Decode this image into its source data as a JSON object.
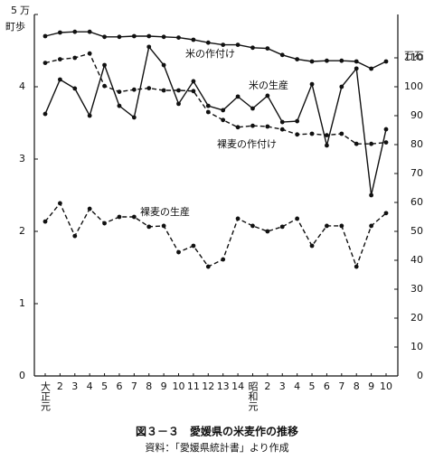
{
  "chart_data": {
    "type": "line",
    "title": "図３－３　愛媛県の米麦作の推移",
    "subtitle": "資料：「愛媛県統計書」より作成",
    "y_label_lines": [
      "万",
      "町歩"
    ],
    "y2_label": "万石",
    "categories": [
      "大正元",
      "2",
      "3",
      "4",
      "5",
      "6",
      "7",
      "8",
      "9",
      "10",
      "11",
      "12",
      "13",
      "14",
      "昭和元",
      "2",
      "3",
      "4",
      "5",
      "6",
      "7",
      "8",
      "9",
      "10"
    ],
    "ylim": [
      0,
      5
    ],
    "yticks": [
      0,
      1,
      2,
      3,
      4,
      5
    ],
    "y2lim": [
      0,
      125
    ],
    "y2ticks": [
      0,
      10,
      20,
      30,
      40,
      50,
      60,
      70,
      80,
      90,
      100,
      110
    ],
    "series": [
      {
        "name": "米の作付け",
        "color": "#111111",
        "dashed": false,
        "values": [
          4.7,
          4.75,
          4.76,
          4.76,
          4.69,
          4.69,
          4.7,
          4.7,
          4.69,
          4.68,
          4.65,
          4.61,
          4.58,
          4.58,
          4.54,
          4.53,
          4.44,
          4.38,
          4.35,
          4.36,
          4.36,
          4.35,
          4.25,
          4.35
        ]
      },
      {
        "name": "裸麦の作付け",
        "color": "#111111",
        "dashed": true,
        "values": [
          4.33,
          4.38,
          4.4,
          4.46,
          4.01,
          3.93,
          3.96,
          3.98,
          3.95,
          3.95,
          3.94,
          3.65,
          3.54,
          3.44,
          3.46,
          3.45,
          3.41,
          3.34,
          3.35,
          3.33,
          3.35,
          3.21,
          3.21,
          3.23
        ]
      },
      {
        "name": "米の生産",
        "color": "#111111",
        "dashed": false,
        "axis": "y2",
        "values": [
          90.6,
          102.5,
          99.4,
          90.0,
          107.5,
          93.4,
          89.4,
          113.8,
          107.5,
          94.1,
          101.9,
          93.4,
          91.9,
          96.6,
          92.5,
          96.9,
          87.8,
          88.1,
          100.9,
          79.7,
          100.0,
          106.3,
          62.5,
          85.3
        ]
      },
      {
        "name": "裸麦の生産",
        "color": "#111111",
        "dashed": true,
        "axis": "y2",
        "values": [
          53.4,
          59.7,
          48.4,
          57.8,
          52.8,
          55.0,
          55.0,
          51.6,
          51.9,
          42.8,
          45.0,
          37.8,
          40.3,
          54.4,
          51.9,
          50.0,
          51.6,
          54.4,
          45.0,
          51.9,
          51.9,
          37.8,
          51.9,
          56.3
        ]
      }
    ]
  }
}
